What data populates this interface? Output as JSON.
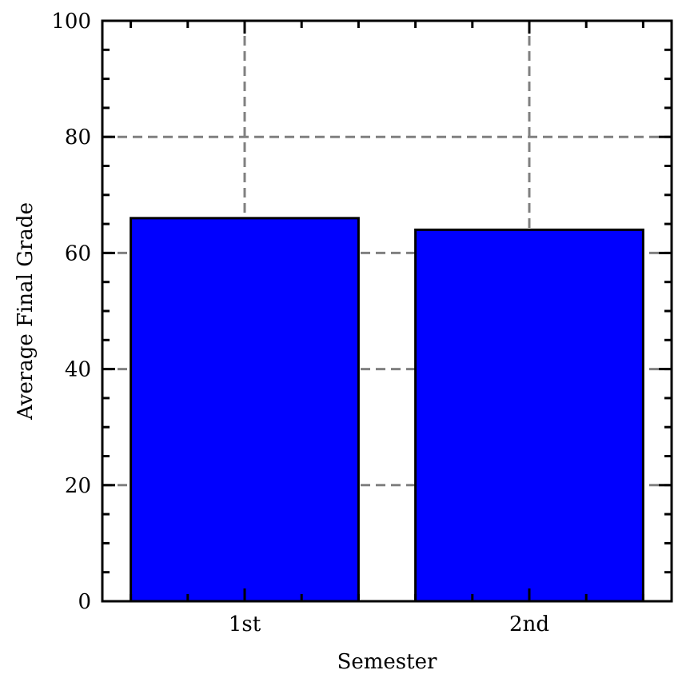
{
  "chart_data": {
    "type": "bar",
    "categories": [
      "1st",
      "2nd"
    ],
    "values": [
      66,
      64
    ],
    "xlabel": "Semester",
    "ylabel": "Average Final Grade",
    "ylim": [
      0,
      100
    ],
    "yticks": [
      "0",
      "20",
      "40",
      "60",
      "80",
      "100"
    ],
    "grid": true,
    "bar_color": "#0000ff",
    "bar_edge_color": "#000000",
    "grid_color": "#808080"
  }
}
